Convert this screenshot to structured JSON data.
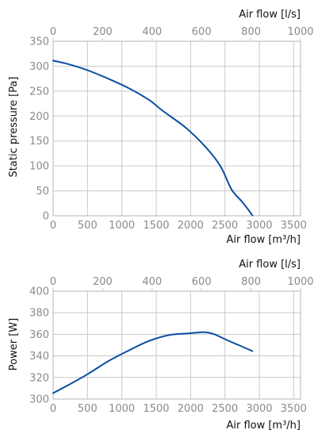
{
  "chart_data": [
    {
      "type": "line",
      "title": "",
      "xlabel": "Air flow [m³/h]",
      "x2label": "Air flow [l/s]",
      "ylabel": "Static pressure [Pa]",
      "xlim": [
        0,
        3600
      ],
      "x2lim": [
        0,
        1000
      ],
      "ylim": [
        0,
        350
      ],
      "xticks": [
        0,
        500,
        1000,
        1500,
        2000,
        2500,
        3000,
        3500
      ],
      "x2ticks": [
        0,
        200,
        400,
        600,
        800,
        1000
      ],
      "yticks": [
        0,
        50,
        100,
        150,
        200,
        250,
        300,
        350
      ],
      "grid": true,
      "color": "#0b4ea2",
      "series": [
        {
          "x": [
            0,
            200,
            500,
            800,
            1100,
            1400,
            1600,
            1900,
            2100,
            2300,
            2450,
            2600,
            2750,
            2900
          ],
          "y": [
            311,
            305,
            292,
            275,
            256,
            232,
            210,
            180,
            155,
            125,
            96,
            52,
            28,
            1
          ]
        }
      ]
    },
    {
      "type": "line",
      "title": "",
      "xlabel": "Air flow [m³/h]",
      "x2label": "Air flow [l/s]",
      "ylabel": "Power [W]",
      "xlim": [
        0,
        3600
      ],
      "x2lim": [
        0,
        1000
      ],
      "ylim": [
        300,
        400
      ],
      "xticks": [
        0,
        500,
        1000,
        1500,
        2000,
        2500,
        3000,
        3500
      ],
      "x2ticks": [
        0,
        200,
        400,
        600,
        800,
        1000
      ],
      "yticks": [
        300,
        320,
        340,
        360,
        380,
        400
      ],
      "grid": true,
      "color": "#0b4ea2",
      "series": [
        {
          "x": [
            0,
            250,
            500,
            800,
            1100,
            1400,
            1700,
            2000,
            2200,
            2350,
            2500,
            2700,
            2900
          ],
          "y": [
            305.5,
            314,
            323,
            335,
            345,
            354,
            359.5,
            361,
            362,
            360,
            355.5,
            350,
            344.5
          ]
        }
      ]
    }
  ]
}
